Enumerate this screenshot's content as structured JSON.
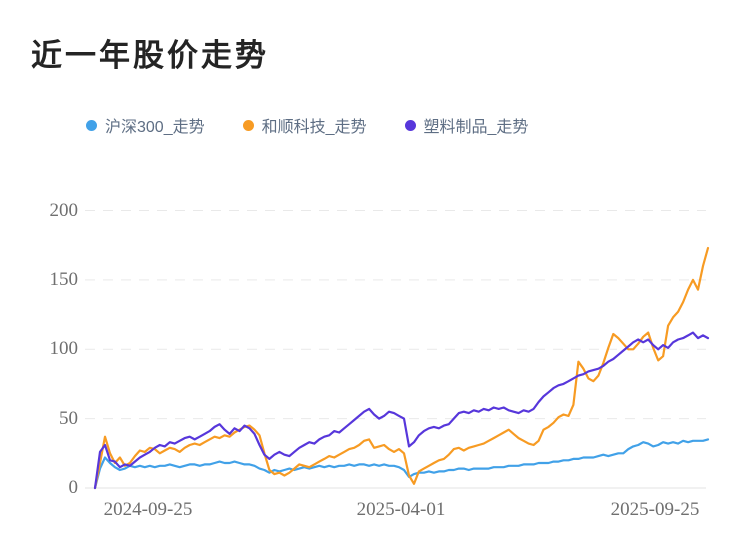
{
  "title": "近一年股价走势",
  "legend": {
    "items": [
      {
        "id": "hs300",
        "label": "沪深300_走势",
        "color": "#41a1e8"
      },
      {
        "id": "heshun",
        "label": "和顺科技_走势",
        "color": "#f79b23"
      },
      {
        "id": "plastics",
        "label": "塑料制品_走势",
        "color": "#5737db"
      }
    ]
  },
  "chart_data": {
    "type": "line",
    "title": "近一年股价走势",
    "xlabel": "",
    "ylabel": "",
    "x_tick_labels": [
      "2024-09-25",
      "2025-04-01",
      "2025-09-25"
    ],
    "y_ticks": [
      0,
      50,
      100,
      150,
      200
    ],
    "ylim": [
      0,
      200
    ],
    "grid": "horizontal-dashed",
    "legend_position": "top",
    "colors": {
      "grid_line": "#e9e9e9",
      "zero_line": "#e3e3e3",
      "axis_text": "#6f6f6f",
      "title_text": "#242424",
      "legend_text": "#5e6e84"
    },
    "series": [
      {
        "id": "hs300",
        "name": "沪深300_走势",
        "color": "#41a1e8",
        "values": [
          0,
          14,
          22,
          18,
          15,
          13,
          14,
          16,
          15,
          16,
          15,
          16,
          15,
          16,
          16,
          17,
          16,
          15,
          16,
          17,
          17,
          16,
          17,
          17,
          18,
          19,
          18,
          18,
          19,
          18,
          17,
          17,
          16,
          14,
          13,
          11,
          13,
          12,
          13,
          14,
          13,
          14,
          15,
          14,
          15,
          16,
          15,
          16,
          15,
          16,
          16,
          17,
          16,
          17,
          17,
          16,
          17,
          16,
          17,
          16,
          16,
          15,
          13,
          8,
          10,
          11,
          11,
          12,
          11,
          12,
          12,
          13,
          13,
          14,
          14,
          13,
          14,
          14,
          14,
          14,
          15,
          15,
          15,
          16,
          16,
          16,
          17,
          17,
          17,
          18,
          18,
          18,
          19,
          19,
          20,
          20,
          21,
          21,
          22,
          22,
          22,
          23,
          24,
          23,
          24,
          25,
          25,
          28,
          30,
          31,
          33,
          32,
          30,
          31,
          33,
          32,
          33,
          32,
          34,
          33,
          34,
          34,
          34,
          35
        ]
      },
      {
        "id": "heshun",
        "name": "和顺科技_走势",
        "color": "#f79b23",
        "values": [
          0,
          18,
          37,
          25,
          18,
          22,
          16,
          18,
          23,
          27,
          26,
          29,
          28,
          25,
          27,
          29,
          28,
          26,
          29,
          31,
          32,
          31,
          33,
          35,
          37,
          36,
          38,
          37,
          40,
          42,
          44,
          45,
          42,
          38,
          25,
          13,
          10,
          11,
          9,
          11,
          14,
          17,
          16,
          15,
          17,
          19,
          21,
          23,
          22,
          24,
          26,
          28,
          29,
          31,
          34,
          35,
          29,
          30,
          31,
          28,
          26,
          28,
          25,
          9,
          3,
          12,
          14,
          16,
          18,
          20,
          21,
          24,
          28,
          29,
          27,
          29,
          30,
          31,
          32,
          34,
          36,
          38,
          40,
          42,
          39,
          36,
          34,
          32,
          31,
          34,
          42,
          44,
          47,
          51,
          53,
          52,
          60,
          91,
          86,
          79,
          77,
          81,
          90,
          101,
          111,
          108,
          104,
          100,
          100,
          104,
          109,
          112,
          101,
          92,
          95,
          117,
          123,
          127,
          134,
          143,
          150,
          143,
          160,
          173
        ]
      },
      {
        "id": "plastics",
        "name": "塑料制品_走势",
        "color": "#5737db",
        "values": [
          0,
          26,
          31,
          20,
          19,
          15,
          17,
          16,
          19,
          22,
          24,
          26,
          29,
          31,
          30,
          33,
          32,
          34,
          36,
          37,
          35,
          37,
          39,
          41,
          44,
          46,
          42,
          39,
          43,
          41,
          45,
          43,
          39,
          31,
          24,
          21,
          24,
          26,
          24,
          23,
          26,
          29,
          31,
          33,
          32,
          35,
          37,
          38,
          41,
          40,
          43,
          46,
          49,
          52,
          55,
          57,
          53,
          50,
          52,
          55,
          54,
          52,
          50,
          30,
          33,
          38,
          41,
          43,
          44,
          43,
          45,
          46,
          50,
          54,
          55,
          54,
          56,
          55,
          57,
          56,
          58,
          57,
          58,
          56,
          55,
          54,
          56,
          55,
          57,
          62,
          66,
          69,
          72,
          74,
          75,
          77,
          79,
          81,
          82,
          84,
          85,
          86,
          88,
          91,
          93,
          96,
          99,
          102,
          105,
          107,
          105,
          107,
          103,
          100,
          103,
          101,
          105,
          107,
          108,
          110,
          112,
          108,
          110,
          108
        ]
      }
    ]
  }
}
